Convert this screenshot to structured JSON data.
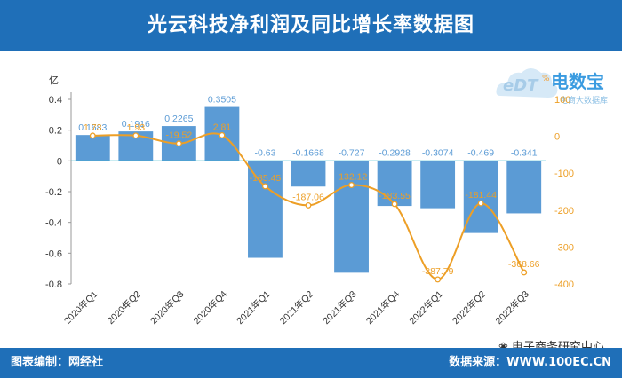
{
  "title": "光云科技净利润及同比增长率数据图",
  "footer": {
    "left": "图表编制：网经社",
    "right": "数据来源：WWW.100EC.CN"
  },
  "watermark": "电子商务研究中心",
  "logo": {
    "brand": "电数宝",
    "sub": "电商大数据库",
    "mark": "eDT",
    "pct": "%"
  },
  "colors": {
    "bar": "#5b9bd5",
    "line": "#ed9f26",
    "bar_label": "#5b9bd5",
    "line_label": "#ed9f26",
    "header": "#1f6fb8"
  },
  "chart_data": {
    "type": "bar",
    "categories": [
      "2020年Q1",
      "2020年Q2",
      "2020年Q3",
      "2020年Q4",
      "2021年Q1",
      "2021年Q2",
      "2021年Q3",
      "2021年Q4",
      "2022年Q1",
      "2022年Q2",
      "2022年Q3"
    ],
    "y_unit_label": "亿",
    "ylim": [
      -0.8,
      0.4
    ],
    "y_ticks": [
      -0.8,
      -0.6,
      -0.4,
      -0.2,
      0,
      0.2,
      0.4
    ],
    "y2lim": [
      -400,
      100
    ],
    "y2_ticks": [
      -400,
      -300,
      -200,
      -100,
      0,
      100
    ],
    "series": [
      {
        "type": "bar",
        "axis": "left",
        "values": [
          0.1683,
          0.1916,
          0.2265,
          0.3505,
          -0.63,
          -0.1668,
          -0.727,
          -0.2928,
          -0.3074,
          -0.469,
          -0.341
        ],
        "labels": [
          "0.1683",
          "0.1916",
          "0.2265",
          "0.3505",
          "-0.63",
          "-0.1668",
          "-0.727",
          "-0.2928",
          "-0.3074",
          "-0.469",
          "-0.341"
        ]
      },
      {
        "type": "line",
        "axis": "right",
        "values": [
          1.73,
          1.93,
          -19.52,
          2.81,
          -135.45,
          -187.06,
          -132.12,
          -183.55,
          -387.79,
          -181.44,
          -368.66
        ],
        "labels": [
          "1.73",
          "1.93",
          "-19.52",
          "2.81",
          "-135.45",
          "-187.06",
          "-132.12",
          "-183.55",
          "-387.79",
          "-181.44",
          "-368.66"
        ]
      }
    ],
    "grid": false,
    "legend": "none"
  }
}
